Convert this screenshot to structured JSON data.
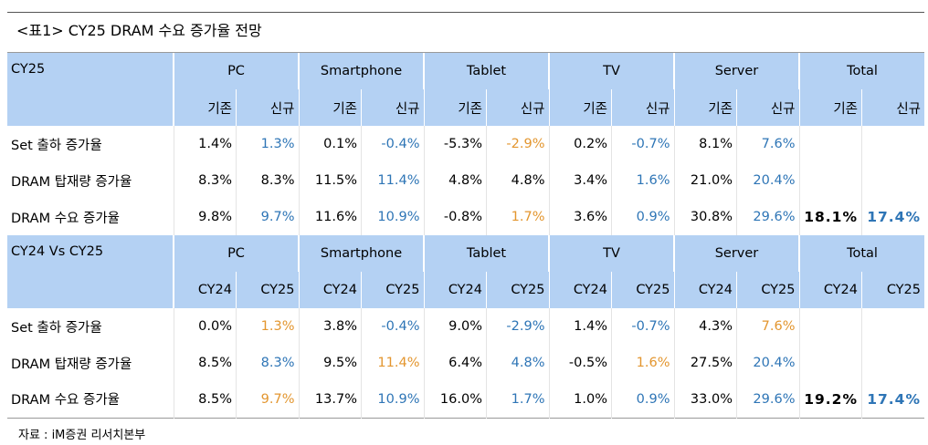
{
  "title": "<표1> CY25 DRAM 수요 증가율 전망",
  "sections": [
    {
      "label": "CY25",
      "groups": [
        "PC",
        "Smartphone",
        "Tablet",
        "TV",
        "Server",
        "Total"
      ],
      "subheaders": [
        "기존",
        "신규",
        "기존",
        "신규",
        "기존",
        "신규",
        "기존",
        "신규",
        "기존",
        "신규",
        "기존",
        "신규"
      ],
      "rows": [
        {
          "label": "Set 출하 증가율",
          "values": [
            "1.4%",
            "1.3%",
            "0.1%",
            "-0.4%",
            "-5.3%",
            "-2.9%",
            "0.2%",
            "-0.7%",
            "8.1%",
            "7.6%"
          ],
          "colors": [
            "#000000",
            "#2e75b6",
            "#000000",
            "#2e75b6",
            "#000000",
            "#e3962f",
            "#000000",
            "#2e75b6",
            "#000000",
            "#2e75b6"
          ]
        },
        {
          "label": "DRAM 탑재량 증가율",
          "values": [
            "8.3%",
            "8.3%",
            "11.5%",
            "11.4%",
            "4.8%",
            "4.8%",
            "3.4%",
            "1.6%",
            "21.0%",
            "20.4%"
          ],
          "colors": [
            "#000000",
            "#000000",
            "#000000",
            "#2e75b6",
            "#000000",
            "#000000",
            "#000000",
            "#2e75b6",
            "#000000",
            "#2e75b6"
          ]
        },
        {
          "label": "DRAM 수요 증가율",
          "values": [
            "9.8%",
            "9.7%",
            "11.6%",
            "10.9%",
            "-0.8%",
            "1.7%",
            "3.6%",
            "0.9%",
            "30.8%",
            "29.6%",
            "18.1%",
            "17.4%"
          ],
          "colors": [
            "#000000",
            "#2e75b6",
            "#000000",
            "#2e75b6",
            "#000000",
            "#e3962f",
            "#000000",
            "#2e75b6",
            "#000000",
            "#2e75b6",
            "#000000",
            "#2e75b6"
          ]
        }
      ]
    },
    {
      "label": "CY24 Vs CY25",
      "groups": [
        "PC",
        "Smartphone",
        "Tablet",
        "TV",
        "Server",
        "Total"
      ],
      "subheaders": [
        "CY24",
        "CY25",
        "CY24",
        "CY25",
        "CY24",
        "CY25",
        "CY24",
        "CY25",
        "CY24",
        "CY25",
        "CY24",
        "CY25"
      ],
      "rows": [
        {
          "label": "Set 출하 증가율",
          "values": [
            "0.0%",
            "1.3%",
            "3.8%",
            "-0.4%",
            "9.0%",
            "-2.9%",
            "1.4%",
            "-0.7%",
            "4.3%",
            "7.6%"
          ],
          "colors": [
            "#000000",
            "#e3962f",
            "#000000",
            "#2e75b6",
            "#000000",
            "#2e75b6",
            "#000000",
            "#2e75b6",
            "#000000",
            "#e3962f"
          ]
        },
        {
          "label": "DRAM 탑재량 증가율",
          "values": [
            "8.5%",
            "8.3%",
            "9.5%",
            "11.4%",
            "6.4%",
            "4.8%",
            "-0.5%",
            "1.6%",
            "27.5%",
            "20.4%"
          ],
          "colors": [
            "#000000",
            "#2e75b6",
            "#000000",
            "#e3962f",
            "#000000",
            "#2e75b6",
            "#000000",
            "#e3962f",
            "#000000",
            "#2e75b6"
          ]
        },
        {
          "label": "DRAM 수요 증가율",
          "values": [
            "8.5%",
            "9.7%",
            "13.7%",
            "10.9%",
            "16.0%",
            "1.7%",
            "1.0%",
            "0.9%",
            "33.0%",
            "29.6%",
            "19.2%",
            "17.4%"
          ],
          "colors": [
            "#000000",
            "#e3962f",
            "#000000",
            "#2e75b6",
            "#000000",
            "#2e75b6",
            "#000000",
            "#2e75b6",
            "#000000",
            "#2e75b6",
            "#000000",
            "#2e75b6"
          ]
        }
      ]
    }
  ],
  "source": "자료 : iM증권 리서치본부"
}
